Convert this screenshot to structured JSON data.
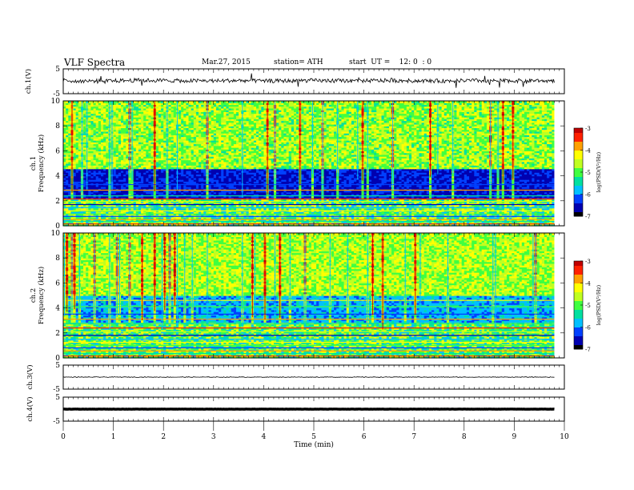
{
  "header": {
    "title": "VLF Spectra",
    "date": "Mar.27, 2015",
    "station": "station= ATH",
    "start": "start  UT =    12: 0  : 0"
  },
  "chart_data": [
    {
      "type": "line",
      "panel": "ch1-waveform",
      "ylabel": "ch.1(V)",
      "yticks": [
        "5",
        "-5"
      ],
      "ylim": [
        -5,
        5
      ],
      "x": [
        0,
        0.5,
        1,
        1.5,
        2,
        2.5,
        3,
        3.5,
        4,
        4.5,
        5,
        5.5,
        6,
        6.5,
        7,
        7.5,
        8,
        8.5,
        9,
        9.5,
        9.8
      ],
      "values": [
        0.3,
        0.1,
        0.2,
        0.4,
        0.3,
        0.2,
        0.2,
        0.3,
        0.1,
        0.2,
        0.3,
        0.2,
        0.2,
        0.3,
        0.2,
        0.1,
        0.3,
        0.2,
        0.2,
        0.3,
        0.2
      ],
      "color": "#000000"
    },
    {
      "type": "heatmap",
      "panel": "ch1-spectrogram",
      "ylabel": "ch.1\nFrequency (kHz)",
      "yticks": [
        "0",
        "2",
        "4",
        "6",
        "8",
        "10"
      ],
      "ylim": [
        0,
        10
      ],
      "xlim": [
        0,
        9.8
      ],
      "colorbar": {
        "label": "log(PSD(V²/Hz)",
        "ticks": [
          "-3",
          "-4",
          "-5",
          "-6",
          "-7"
        ],
        "range": [
          -7,
          -3
        ]
      },
      "description_bands_khz": {
        "lines_below": 2.2,
        "dark_band": [
          2.2,
          4.5
        ],
        "broadband_above": 4.5
      }
    },
    {
      "type": "heatmap",
      "panel": "ch2-spectrogram",
      "ylabel": "ch.2\nFrequency (kHz)",
      "yticks": [
        "0",
        "2",
        "4",
        "6",
        "8",
        "10"
      ],
      "ylim": [
        0,
        10
      ],
      "xlim": [
        0,
        9.8
      ],
      "colorbar": {
        "label": "log(PSD(V²/Hz)",
        "ticks": [
          "-3",
          "-4",
          "-5",
          "-6",
          "-7"
        ],
        "range": [
          -7,
          -3
        ]
      }
    },
    {
      "type": "line",
      "panel": "ch3-waveform",
      "ylabel": "ch.3(V)",
      "yticks": [
        "5",
        "-5"
      ],
      "ylim": [
        -5,
        5
      ],
      "x": [
        0,
        9.8
      ],
      "values": [
        0,
        0
      ],
      "color": "#000000"
    },
    {
      "type": "line",
      "panel": "ch4-waveform",
      "ylabel": "ch.4(V)",
      "yticks": [
        "5",
        "-5"
      ],
      "ylim": [
        -5,
        5
      ],
      "x": [
        0,
        9.8
      ],
      "values": [
        0,
        0
      ],
      "color": "#000000"
    }
  ],
  "xaxis": {
    "label": "Time  (min)",
    "ticks": [
      "0",
      "1",
      "2",
      "3",
      "4",
      "5",
      "6",
      "7",
      "8",
      "9",
      "10"
    ],
    "xlim": [
      0,
      10
    ]
  },
  "colormap": [
    "#000000",
    "#0000b0",
    "#0040ff",
    "#00c0ff",
    "#00e0a0",
    "#40ff40",
    "#c0ff20",
    "#ffff00",
    "#ffa000",
    "#ff2000",
    "#c00000",
    "#ffffff"
  ]
}
